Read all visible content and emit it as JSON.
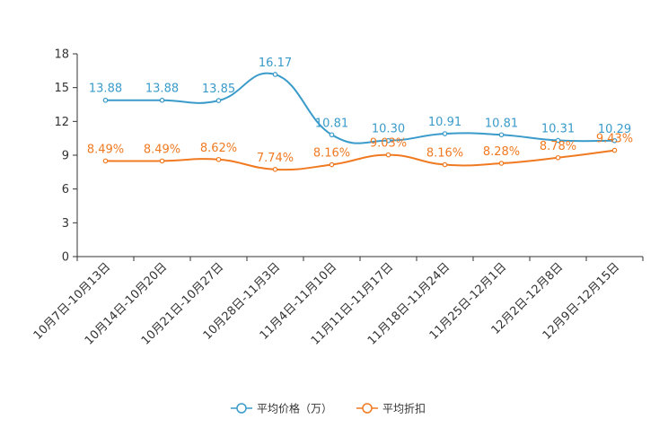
{
  "chart_data": {
    "type": "line",
    "title": "",
    "xlabel": "",
    "ylabel": "",
    "ylim": [
      0,
      18
    ],
    "yticks": [
      0,
      3,
      6,
      9,
      12,
      15,
      18
    ],
    "grid": false,
    "legend_position": "bottom-center",
    "categories": [
      "10月7日-10月13日",
      "10月14日-10月20日",
      "10月21日-10月27日",
      "10月28日-11月3日",
      "11月4日-11月10日",
      "11月11日-11月17日",
      "11月18日-11月24日",
      "11月25日-12月1日",
      "12月2日-12月8日",
      "12月9日-12月15日"
    ],
    "series": [
      {
        "name": "平均价格（万）",
        "color": "#3a9bcb",
        "values": [
          13.88,
          13.88,
          13.85,
          16.17,
          10.81,
          10.3,
          10.91,
          10.81,
          10.31,
          10.29
        ],
        "labels": [
          "13.88",
          "13.88",
          "13.85",
          "16.17",
          "10.81",
          "10.30",
          "10.91",
          "10.81",
          "10.31",
          "10.29"
        ]
      },
      {
        "name": "平均折扣",
        "color": "#f07a22",
        "values": [
          8.49,
          8.49,
          8.62,
          7.74,
          8.16,
          9.03,
          8.16,
          8.28,
          8.78,
          9.43
        ],
        "labels": [
          "8.49%",
          "8.49%",
          "8.62%",
          "7.74%",
          "8.16%",
          "9.03%",
          "8.16%",
          "8.28%",
          "8.78%",
          "9.43%"
        ]
      }
    ]
  }
}
